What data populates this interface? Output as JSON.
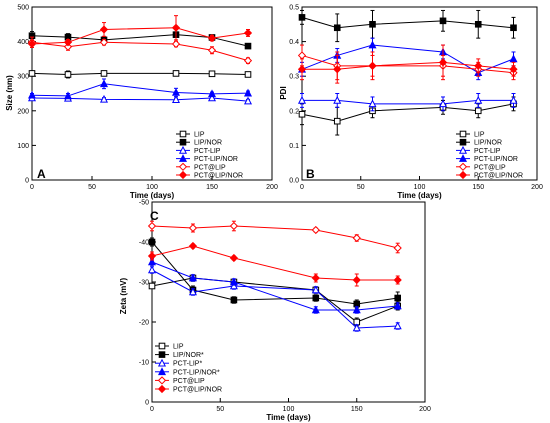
{
  "chart_data": [
    {
      "type": "line",
      "panel_label": "A",
      "xlabel": "Time (days)",
      "ylabel": "Size (nm)",
      "xlim": [
        0,
        200
      ],
      "ylim": [
        0,
        500
      ],
      "xticks": [
        0,
        50,
        100,
        150,
        200
      ],
      "yticks": [
        0,
        100,
        200,
        300,
        400,
        500
      ],
      "legend_position": "bottom-right",
      "series": [
        {
          "name": "LIP",
          "marker": "square-open",
          "color": "#000000",
          "x": [
            0,
            30,
            60,
            120,
            150,
            180
          ],
          "y": [
            308,
            305,
            308,
            308,
            307,
            305
          ],
          "err": [
            5,
            10,
            4,
            4,
            4,
            5
          ]
        },
        {
          "name": "LIP/NOR",
          "marker": "square-filled",
          "color": "#000000",
          "x": [
            0,
            30,
            60,
            120,
            150,
            180
          ],
          "y": [
            417,
            413,
            405,
            420,
            412,
            387
          ],
          "err": [
            12,
            10,
            10,
            8,
            6,
            5
          ]
        },
        {
          "name": "PCT-LIP",
          "marker": "triangle-open",
          "color": "#0000ff",
          "x": [
            0,
            30,
            60,
            120,
            150,
            180
          ],
          "y": [
            237,
            236,
            233,
            232,
            237,
            228
          ],
          "err": [
            5,
            5,
            5,
            5,
            6,
            5
          ]
        },
        {
          "name": "PCT-LIP/NOR",
          "marker": "triangle-filled",
          "color": "#0000ff",
          "x": [
            0,
            30,
            60,
            120,
            150,
            180
          ],
          "y": [
            245,
            243,
            278,
            253,
            249,
            251
          ],
          "err": [
            5,
            7,
            14,
            12,
            5,
            6
          ]
        },
        {
          "name": "PCT@LIP",
          "marker": "diamond-open",
          "color": "#ff0000",
          "x": [
            0,
            30,
            60,
            120,
            150,
            180
          ],
          "y": [
            398,
            385,
            398,
            393,
            375,
            345
          ],
          "err": [
            15,
            10,
            8,
            8,
            10,
            8
          ]
        },
        {
          "name": "PCT@LIP/NOR",
          "marker": "diamond-filled",
          "color": "#ff0000",
          "x": [
            0,
            30,
            60,
            120,
            150,
            180
          ],
          "y": [
            393,
            398,
            435,
            440,
            410,
            425
          ],
          "err": [
            10,
            8,
            20,
            35,
            8,
            10
          ]
        }
      ]
    },
    {
      "type": "line",
      "panel_label": "B",
      "xlabel": "Time (days)",
      "ylabel": "PDI",
      "xlim": [
        0,
        200
      ],
      "ylim": [
        0.0,
        0.5
      ],
      "xticks": [
        0,
        50,
        100,
        150,
        200
      ],
      "yticks": [
        0.0,
        0.1,
        0.2,
        0.3,
        0.4,
        0.5
      ],
      "ytick_labels": [
        "0.0",
        "0.1",
        "0.2",
        "0.3",
        "0.4",
        "0.5"
      ],
      "legend_position": "bottom-right",
      "series": [
        {
          "name": "LIP",
          "marker": "square-open",
          "color": "#000000",
          "x": [
            0,
            30,
            60,
            120,
            150,
            180
          ],
          "y": [
            0.19,
            0.17,
            0.2,
            0.21,
            0.2,
            0.22
          ],
          "err": [
            0.03,
            0.04,
            0.02,
            0.02,
            0.02,
            0.02
          ]
        },
        {
          "name": "LIP/NOR",
          "marker": "square-filled",
          "color": "#000000",
          "x": [
            0,
            30,
            60,
            120,
            150,
            180
          ],
          "y": [
            0.47,
            0.44,
            0.45,
            0.46,
            0.45,
            0.44
          ],
          "err": [
            0.02,
            0.04,
            0.04,
            0.03,
            0.04,
            0.03
          ]
        },
        {
          "name": "PCT-LIP",
          "marker": "triangle-open",
          "color": "#0000ff",
          "x": [
            0,
            30,
            60,
            120,
            150,
            180
          ],
          "y": [
            0.23,
            0.23,
            0.22,
            0.22,
            0.23,
            0.23
          ],
          "err": [
            0.02,
            0.02,
            0.02,
            0.02,
            0.02,
            0.02
          ]
        },
        {
          "name": "PCT-LIP/NOR",
          "marker": "triangle-filled",
          "color": "#0000ff",
          "x": [
            0,
            30,
            60,
            120,
            150,
            180
          ],
          "y": [
            0.32,
            0.36,
            0.39,
            0.37,
            0.31,
            0.35
          ],
          "err": [
            0.02,
            0.02,
            0.02,
            0.02,
            0.02,
            0.02
          ]
        },
        {
          "name": "PCT@LIP",
          "marker": "diamond-open",
          "color": "#ff0000",
          "x": [
            0,
            30,
            60,
            120,
            150,
            180
          ],
          "y": [
            0.36,
            0.33,
            0.33,
            0.33,
            0.32,
            0.31
          ],
          "err": [
            0.03,
            0.04,
            0.04,
            0.03,
            0.02,
            0.02
          ]
        },
        {
          "name": "PCT@LIP/NOR",
          "marker": "diamond-filled",
          "color": "#ff0000",
          "x": [
            0,
            30,
            60,
            120,
            150,
            180
          ],
          "y": [
            0.32,
            0.32,
            0.33,
            0.34,
            0.33,
            0.32
          ],
          "err": [
            0.03,
            0.04,
            0.03,
            0.05,
            0.02,
            0.02
          ]
        }
      ]
    },
    {
      "type": "line",
      "panel_label": "C",
      "xlabel": "Time (days)",
      "ylabel": "Zeta (mV)",
      "xlim": [
        0,
        200
      ],
      "ylim": [
        0,
        -50
      ],
      "xticks": [
        0,
        50,
        100,
        150,
        200
      ],
      "yticks": [
        0,
        -10,
        -20,
        -30,
        -40,
        -50
      ],
      "legend_position": "bottom-left",
      "series": [
        {
          "name": "LIP",
          "marker": "square-open",
          "color": "#000000",
          "x": [
            0,
            30,
            60,
            120,
            150,
            180
          ],
          "y": [
            -29,
            -31,
            -30,
            -28,
            -20,
            -24
          ],
          "err": [
            0.5,
            0.8,
            0.6,
            0.8,
            1.0,
            1.0
          ]
        },
        {
          "name": "LIP/NOR*",
          "marker": "square-filled",
          "color": "#000000",
          "x": [
            0,
            30,
            60,
            120,
            150,
            180
          ],
          "y": [
            -40,
            -28,
            -25.5,
            -26,
            -24.5,
            -26
          ],
          "err": [
            1.0,
            1.0,
            0.8,
            0.8,
            1.0,
            1.5
          ]
        },
        {
          "name": "PCT-LIP*",
          "marker": "triangle-open",
          "color": "#0000ff",
          "x": [
            0,
            30,
            60,
            120,
            150,
            180
          ],
          "y": [
            -33,
            -27.5,
            -29,
            -28,
            -18.5,
            -19
          ],
          "err": [
            0.8,
            0.8,
            0.8,
            0.8,
            0.8,
            0.8
          ]
        },
        {
          "name": "PCT-LIP/NOR*",
          "marker": "triangle-filled",
          "color": "#0000ff",
          "x": [
            0,
            30,
            60,
            120,
            150,
            180
          ],
          "y": [
            -35,
            -31,
            -30,
            -23,
            -23,
            -24
          ],
          "err": [
            0.8,
            0.8,
            0.8,
            0.8,
            0.8,
            0.8
          ]
        },
        {
          "name": "PCT@LIP",
          "marker": "diamond-open",
          "color": "#ff0000",
          "x": [
            0,
            30,
            60,
            120,
            150,
            180
          ],
          "y": [
            -44,
            -43.5,
            -44,
            -43,
            -41,
            -38.5
          ],
          "err": [
            1.2,
            1.0,
            1.2,
            0.5,
            0.8,
            1.2
          ]
        },
        {
          "name": "PCT@LIP/NOR",
          "marker": "diamond-filled",
          "color": "#ff0000",
          "x": [
            0,
            30,
            60,
            120,
            150,
            180
          ],
          "y": [
            -36.5,
            -39,
            -36,
            -31,
            -30.5,
            -30.5
          ],
          "err": [
            1.0,
            0.5,
            0.5,
            1.0,
            1.5,
            1.0
          ]
        }
      ]
    }
  ]
}
